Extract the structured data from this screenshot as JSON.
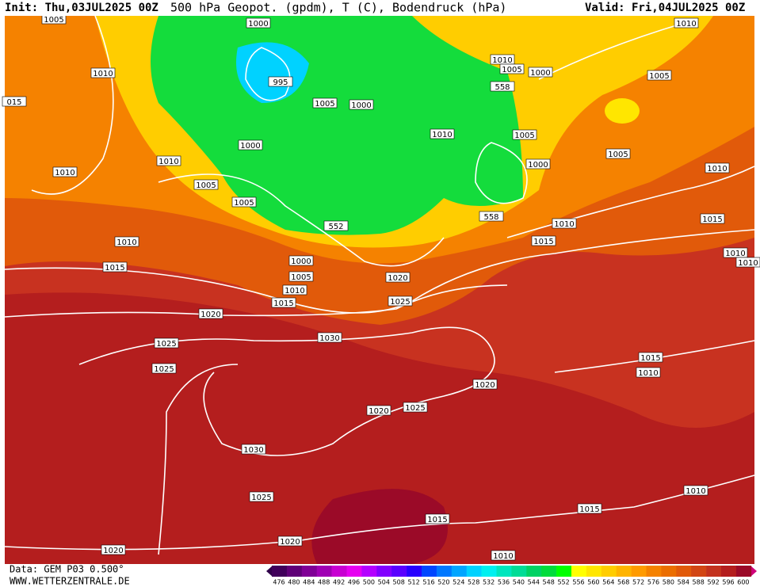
{
  "header": {
    "init": "Init: Thu,03JUL2025 00Z",
    "title": "500 hPa Geopot. (gpdm), T (C), Bodendruck (hPa)",
    "valid": "Valid: Fri,04JUL2025 00Z"
  },
  "isobar_labels": [
    "1005",
    "1000",
    "1010",
    "1010",
    "1010",
    "1005",
    "1000",
    "995",
    "1005",
    "558",
    "015",
    "1005",
    "1000",
    "1010",
    "1005",
    "1000",
    "1010",
    "1005",
    "1010",
    "1000",
    "1010",
    "1005",
    "1005",
    "558",
    "1010",
    "552",
    "1015",
    "1010",
    "1015",
    "1010",
    "1010",
    "1000",
    "1015",
    "1005",
    "1020",
    "1010",
    "1025",
    "1015",
    "1020",
    "1030",
    "1025",
    "1015",
    "1025",
    "1010",
    "1020",
    "1025",
    "1020",
    "1030",
    "1010",
    "1025",
    "1015",
    "1015",
    "1020",
    "1020",
    "1010"
  ],
  "colorbar": {
    "labels": [
      476,
      480,
      484,
      488,
      492,
      496,
      500,
      504,
      508,
      512,
      516,
      520,
      524,
      528,
      532,
      536,
      540,
      544,
      548,
      552,
      556,
      560,
      564,
      568,
      572,
      576,
      580,
      584,
      588,
      592,
      596,
      600
    ],
    "colors": [
      "#40005a",
      "#600078",
      "#800096",
      "#a000b4",
      "#c800d2",
      "#e600f0",
      "#b400ff",
      "#8200ff",
      "#5a00ff",
      "#2800ff",
      "#0046ff",
      "#0078ff",
      "#00a5ff",
      "#00d2ff",
      "#00f0f0",
      "#00e6be",
      "#00dc96",
      "#00d264",
      "#00dc3c",
      "#00ff00",
      "#ffff00",
      "#ffe600",
      "#ffcd00",
      "#ffb400",
      "#ff9b00",
      "#f58200",
      "#eb6e00",
      "#e15a0a",
      "#d24614",
      "#c3321e",
      "#b41e1e",
      "#9b0a28"
    ]
  },
  "footer": {
    "data": "Data: GEM P03 0.500°",
    "site": "WWW.WETTERZENTRALE.DE"
  }
}
